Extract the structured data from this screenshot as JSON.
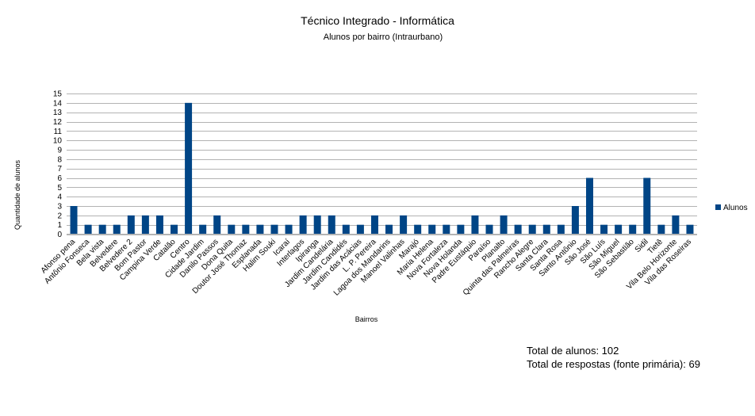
{
  "chart_data": {
    "type": "bar",
    "title": "Técnico Integrado - Informática",
    "subtitle": "Alunos por bairro (Intraurbano)",
    "xlabel": "Bairros",
    "ylabel": "Quantidade de alunos",
    "ylim": [
      0,
      15
    ],
    "yticks": [
      "0",
      "1",
      "2",
      "3",
      "4",
      "5",
      "6",
      "7",
      "8",
      "9",
      "10",
      "11",
      "12",
      "13",
      "14",
      "15"
    ],
    "grid": true,
    "legend_position": "right",
    "categories": [
      "Afonso pena",
      "Antônio Fonseca",
      "Bela vista",
      "Belvedere",
      "Belvedere 2",
      "Bom Pastor",
      "Campina Verde",
      "Catalão",
      "Centro",
      "Cidade Jardim",
      "Danilo Passos",
      "Dona Quita",
      "Doutor José Thomaz",
      "Esplanada",
      "Halim Souki",
      "Icaraí",
      "Interlagos",
      "Ipiranga",
      "Jardim Candelária",
      "Jardim Candidés",
      "Jardim das Acácias",
      "L. P. Pereira",
      "Lagoa dos Mandarins",
      "Manoel Valinhas",
      "Marajó",
      "Maria Helena",
      "Nova Fortaleza",
      "Nova Holanda",
      "Padre Eustáquio",
      "Paraíso",
      "Planalto",
      "Quinta das Palmeiras",
      "Rancho Alegre",
      "Santa Clara",
      "Santa Rosa",
      "Santo Antônio",
      "São José",
      "São Luís",
      "São Miguel",
      "São Sebastião",
      "Sidil",
      "Tietê",
      "Vila Belo Horizonte",
      "Vila das Roseiras"
    ],
    "series": [
      {
        "name": "Alunos",
        "color": "#004586",
        "values": [
          3,
          1,
          1,
          1,
          2,
          2,
          2,
          1,
          14,
          1,
          2,
          1,
          1,
          1,
          1,
          1,
          2,
          2,
          2,
          1,
          1,
          2,
          1,
          2,
          1,
          1,
          1,
          1,
          2,
          1,
          2,
          1,
          1,
          1,
          1,
          3,
          6,
          1,
          1,
          1,
          6,
          1,
          2,
          1
        ]
      }
    ]
  },
  "totals": {
    "alunos": "Total de alunos: 102",
    "respostas": "Total de respostas (fonte primária): 69"
  }
}
